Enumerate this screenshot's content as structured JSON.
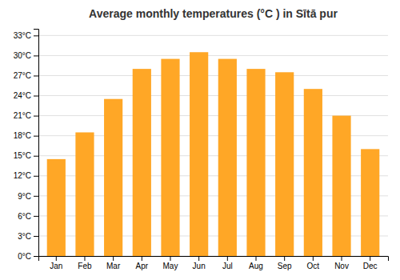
{
  "chart_data": {
    "type": "bar",
    "title": "Average monthly temperatures (°C ) in Sītā pur",
    "categories": [
      "Jan",
      "Feb",
      "Mar",
      "Apr",
      "May",
      "Jun",
      "Jul",
      "Aug",
      "Sep",
      "Oct",
      "Nov",
      "Dec"
    ],
    "values": [
      14.5,
      18.5,
      23.5,
      28.0,
      29.5,
      30.5,
      29.5,
      28.0,
      27.5,
      25.0,
      21.0,
      16.0
    ],
    "color": "#FFA726",
    "ylim": [
      0,
      34
    ],
    "yticks": [
      {
        "value": 0,
        "label": "0°C"
      },
      {
        "value": 3,
        "label": "3°C"
      },
      {
        "value": 6,
        "label": "6°C"
      },
      {
        "value": 9,
        "label": "9°C"
      },
      {
        "value": 12,
        "label": "12°C"
      },
      {
        "value": 15,
        "label": "15°C"
      },
      {
        "value": 18,
        "label": "18°C"
      },
      {
        "value": 21,
        "label": "21°C"
      },
      {
        "value": 24,
        "label": "24°C"
      },
      {
        "value": 27,
        "label": "27°C"
      },
      {
        "value": 30,
        "label": "30°C"
      },
      {
        "value": 33,
        "label": "33°C"
      }
    ],
    "grid": true
  }
}
